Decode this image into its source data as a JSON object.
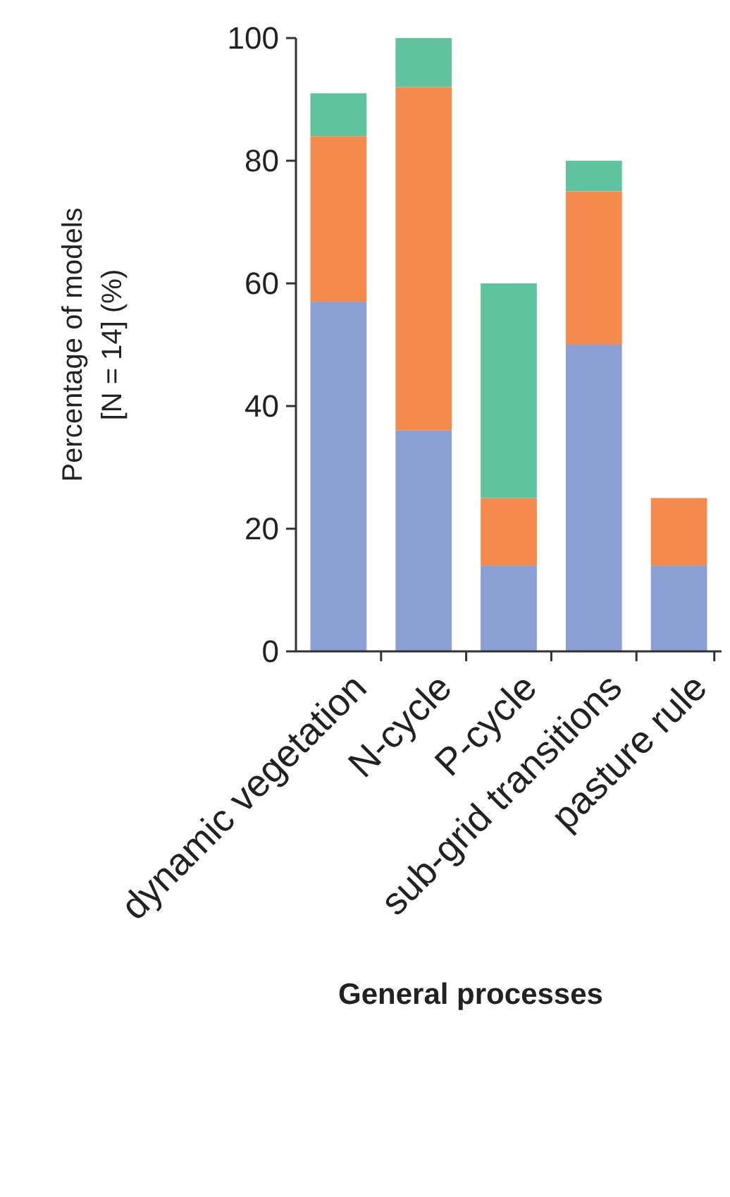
{
  "chart_data": {
    "type": "bar",
    "stacked": true,
    "ylabel": "Percentage of models\n[N = 14] (%)",
    "xlabel": "General processes",
    "categories": [
      "dynamic vegetation",
      "N-cycle",
      "P-cycle",
      "sub-grid transitions",
      "pasture rule"
    ],
    "series": [
      {
        "color": "#8a9fd4",
        "values": [
          57,
          36,
          14,
          50,
          14
        ]
      },
      {
        "color": "#f58a4e",
        "values": [
          27,
          56,
          11,
          25,
          11
        ]
      },
      {
        "color": "#5fc3a0",
        "values": [
          7,
          8,
          35,
          5,
          0
        ]
      }
    ],
    "ylim": [
      0,
      100
    ],
    "yticks": [
      0,
      20,
      40,
      60,
      80,
      100
    ],
    "grid": false
  }
}
